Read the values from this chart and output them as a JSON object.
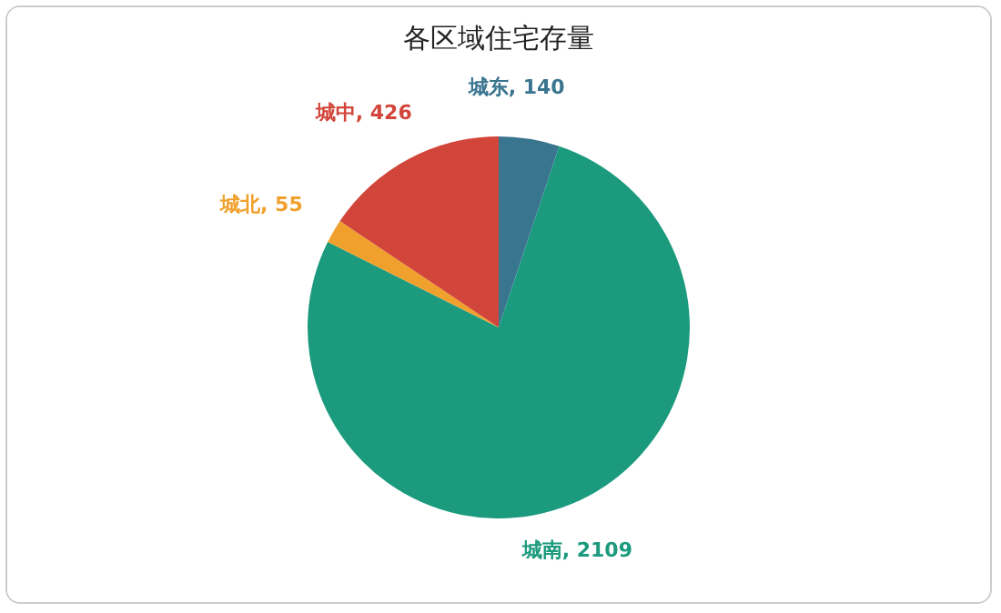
{
  "chart_data": {
    "type": "pie",
    "title": "各区域住宅存量",
    "categories": [
      "城东",
      "城南",
      "城北",
      "城中"
    ],
    "values": [
      140,
      2109,
      55,
      426
    ],
    "value_labels": [
      ", 140",
      ", 2109",
      ", 55",
      ", 426"
    ],
    "colors": [
      "#3a7590",
      "#1b9a7d",
      "#f0a02c",
      "#d2453a"
    ],
    "legend": false
  }
}
